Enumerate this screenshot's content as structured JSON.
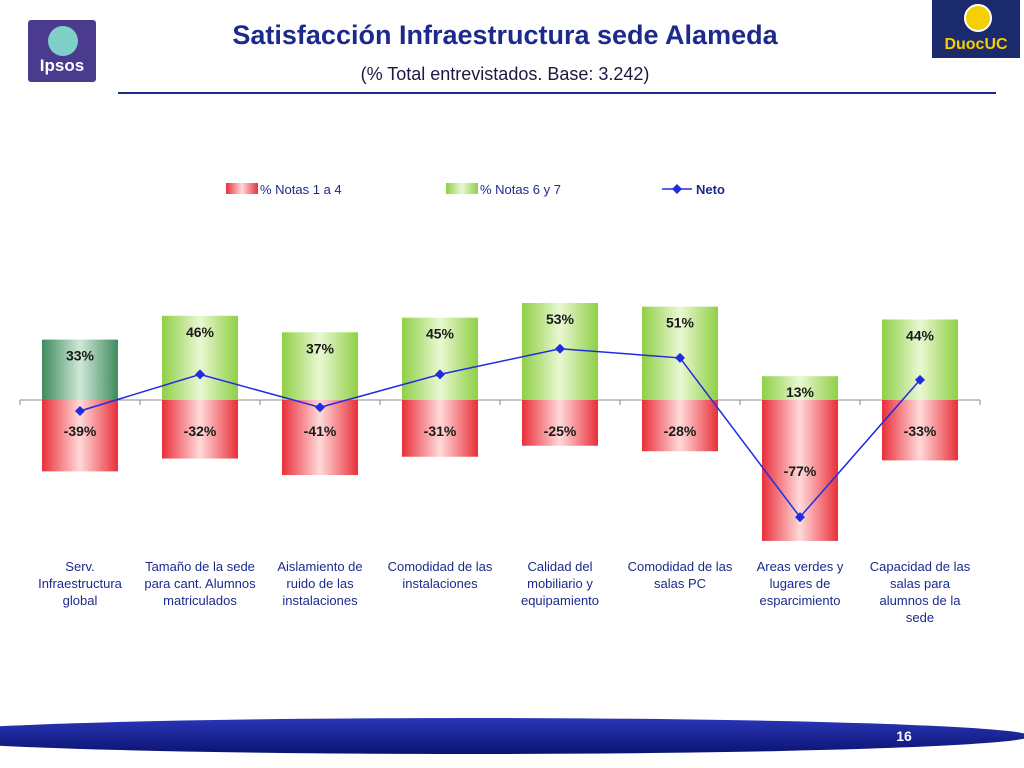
{
  "header": {
    "title": "Satisfacción Infraestructura sede Alameda",
    "subtitle": "(% Total entrevistados. Base: 3.242)",
    "logo_left_text": "Ipsos",
    "logo_right_text": "DuocUC"
  },
  "footer": {
    "page_number": "16"
  },
  "colors": {
    "red_series": "#e8303a",
    "green_series": "#8fcf45",
    "first_green": "#3f8a5e",
    "neto_line": "#1f2de0",
    "title": "#1c2a8c"
  },
  "chart_data": {
    "type": "bar",
    "title": "",
    "xlabel": "",
    "ylabel": "",
    "ylim": [
      -85,
      70
    ],
    "grid": false,
    "legend_position": "top",
    "categories": [
      "Serv. Infraestructura global",
      "Tamaño de la sede para cant. Alumnos matriculados",
      "Aislamiento de ruido de las instalaciones",
      "Comodidad de las instalaciones",
      "Calidad del mobiliario y equipamiento",
      "Comodidad de las salas PC",
      "Areas verdes y lugares de esparcimiento",
      "Capacidad de las salas para alumnos de la sede"
    ],
    "category_lines": [
      [
        "Serv.",
        "Infraestructura",
        "global"
      ],
      [
        "Tamaño de la sede",
        "para cant. Alumnos",
        "matriculados"
      ],
      [
        "Aislamiento de",
        "ruido de las",
        "instalaciones"
      ],
      [
        "Comodidad de las",
        "instalaciones"
      ],
      [
        "Calidad del",
        "mobiliario y",
        "equipamiento"
      ],
      [
        "Comodidad de las",
        "salas PC"
      ],
      [
        "Areas verdes y",
        "lugares de",
        "esparcimiento"
      ],
      [
        "Capacidad de las",
        "salas para",
        "alumnos de la",
        "sede"
      ]
    ],
    "series": [
      {
        "name": "% Notas 1 a 4",
        "kind": "bar",
        "values": [
          -39,
          -32,
          -41,
          -31,
          -25,
          -28,
          -77,
          -33
        ],
        "labels": [
          "-39%",
          "-32%",
          "-41%",
          "-31%",
          "-25%",
          "-28%",
          "-77%",
          "-33%"
        ]
      },
      {
        "name": "% Notas 6 y 7",
        "kind": "bar",
        "values": [
          33,
          46,
          37,
          45,
          53,
          51,
          13,
          44
        ],
        "labels": [
          "33%",
          "46%",
          "37%",
          "45%",
          "53%",
          "51%",
          "13%",
          "44%"
        ]
      },
      {
        "name": "Neto",
        "kind": "line",
        "values": [
          -6,
          14,
          -4,
          14,
          28,
          23,
          -64,
          11
        ]
      }
    ]
  }
}
